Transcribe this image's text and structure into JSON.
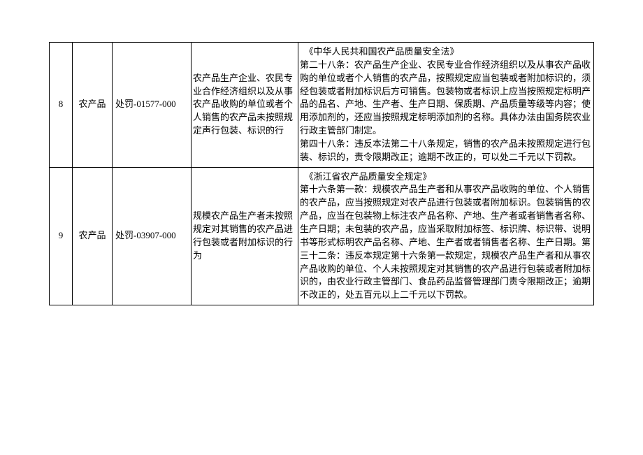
{
  "table": {
    "rows": [
      {
        "seq": "8",
        "category": "农产品",
        "code": "处罚-01577-000",
        "description": "农产品生产企业、农民专业合作经济组织以及从事农产品收购的单位或者个人销售的农产品未按照规定声行包装、标识的行",
        "law": "　《中华人民共和国农产品质量安全法》\n第二十八条：农产品生产企业、农民专业合作经济组织以及从事农产品收购的单位或者个人销售的农产品，按照规定应当包装或者附加标识的，须经包装或者附加标识后方可销售。包装物或者标识上应当按照规定标明产品的品名、产地、生产者、生产日期、保质期、产品质量等级等内容；使用添加剂的，还应当按照规定标明添加剂的名称。具体办法由国务院农业行政主管部门制定。\n第四十八条：违反本法第二十八条规定，销售的农产品未按照规定进行包装、标识的，责令限期改正；逾期不改正的，可以处二千元以下罚款。"
      },
      {
        "seq": "9",
        "category": "农产品",
        "code": "处罚-03907-000",
        "description": "规模农产品生产者未按照规定对其销售的农产品进行包装或者附加标识的行为",
        "law": "　《浙江省农产品质量安全规定》\n第十六条第一款：规模农产品生产者和从事农产品收购的单位、个人销售的农产品，应当按照规定对农产品进行包装或者附加标识。包装销售的农产品，应当在包装物上标注农产品名称、产地、生产者或者销售者名称、生产日期；未包装的农产品，应当采取附加标签、标识牌、标识带、说明书等形式标明农产品名称、产地、生产者或者销售者名称、生产日期。第三十二条：违反本规定第十六条第一款规定，规模农产品生产者和从事农产品收购的单位、个人未按照规定对其销售的农产品进行包装或者附加标识的，由农业行政主管部门、食品药品监督管理部门责令限期改正；逾期不改正的，处五百元以上二千元以下罚款。"
      }
    ]
  }
}
